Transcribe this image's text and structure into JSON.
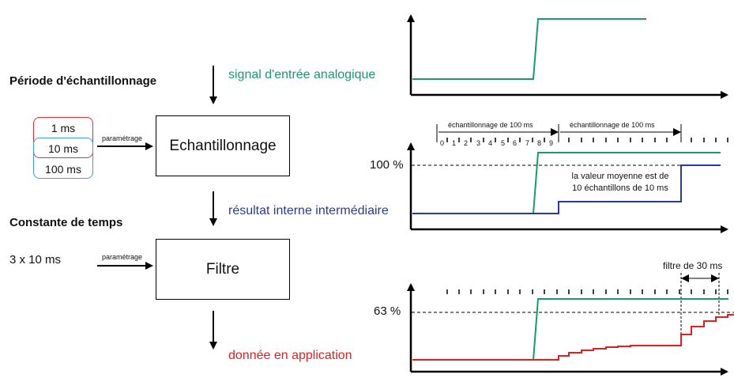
{
  "left": {
    "sampling_heading": "Période d'échantillonnage",
    "time_constant_heading": "Constante de temps",
    "time_constant_value": "3 x 10 ms",
    "options": [
      "1 ms",
      "10 ms",
      "100 ms"
    ],
    "param_label_1": "paramétrage",
    "param_label_2": "paramétrage",
    "box_sampling": "Echantillonnage",
    "box_filter": "Filtre"
  },
  "signals": {
    "analog_input": "signal d'entrée analogique",
    "intermediate": "résultat interne intermédiaire",
    "app_data": "donnée en application"
  },
  "chart": {
    "sampling_label_1": "échantillonnage de 100 ms",
    "sampling_label_2": "échantillonnage de 100 ms",
    "tick_numbers": [
      "0",
      "1",
      "2",
      "3",
      "4",
      "5",
      "6",
      "7",
      "8",
      "9"
    ],
    "level_100": "100 %",
    "level_63": "63 %",
    "mean_note_line1": "la valeur moyenne est de",
    "mean_note_line2": "10 échantillons de 10 ms",
    "filter_label": "filtre de 30 ms"
  },
  "colors": {
    "green": "#1a9a6a",
    "blue": "#2b3a9a",
    "red": "#e02020",
    "option_red": "#e03030",
    "option_blue": "#3aa0e0"
  }
}
